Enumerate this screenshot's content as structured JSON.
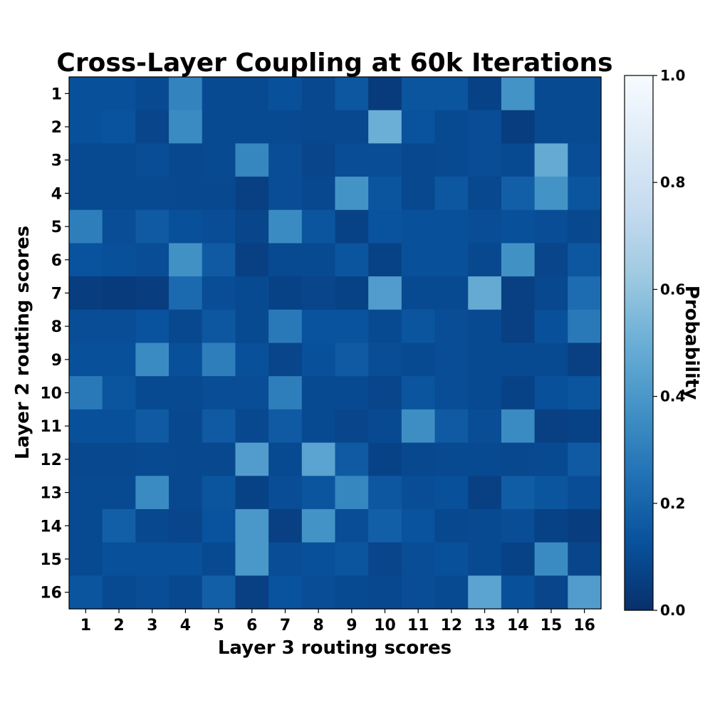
{
  "chart_data": {
    "type": "heatmap",
    "title": "Cross-Layer Coupling at 60k Iterations",
    "xlabel": "Layer 3 routing scores",
    "ylabel": "Layer 2 routing scores",
    "x_categories": [
      "1",
      "2",
      "3",
      "4",
      "5",
      "6",
      "7",
      "8",
      "9",
      "10",
      "11",
      "12",
      "13",
      "14",
      "15",
      "16"
    ],
    "y_categories": [
      "1",
      "2",
      "3",
      "4",
      "5",
      "6",
      "7",
      "8",
      "9",
      "10",
      "11",
      "12",
      "13",
      "14",
      "15",
      "16"
    ],
    "values": [
      [
        0.12,
        0.12,
        0.1,
        0.32,
        0.1,
        0.1,
        0.12,
        0.09,
        0.15,
        0.04,
        0.14,
        0.14,
        0.07,
        0.38,
        0.1,
        0.1
      ],
      [
        0.12,
        0.13,
        0.08,
        0.35,
        0.1,
        0.1,
        0.1,
        0.09,
        0.09,
        0.5,
        0.13,
        0.1,
        0.11,
        0.05,
        0.1,
        0.1
      ],
      [
        0.1,
        0.1,
        0.11,
        0.09,
        0.1,
        0.33,
        0.11,
        0.08,
        0.11,
        0.11,
        0.09,
        0.1,
        0.11,
        0.1,
        0.48,
        0.11
      ],
      [
        0.1,
        0.1,
        0.1,
        0.09,
        0.09,
        0.06,
        0.11,
        0.09,
        0.38,
        0.14,
        0.09,
        0.15,
        0.09,
        0.18,
        0.38,
        0.14
      ],
      [
        0.3,
        0.11,
        0.16,
        0.12,
        0.11,
        0.08,
        0.35,
        0.14,
        0.07,
        0.13,
        0.12,
        0.12,
        0.11,
        0.12,
        0.11,
        0.09
      ],
      [
        0.13,
        0.12,
        0.11,
        0.37,
        0.16,
        0.06,
        0.1,
        0.1,
        0.14,
        0.07,
        0.12,
        0.12,
        0.09,
        0.37,
        0.08,
        0.15
      ],
      [
        0.05,
        0.04,
        0.05,
        0.22,
        0.11,
        0.1,
        0.07,
        0.08,
        0.07,
        0.42,
        0.1,
        0.1,
        0.48,
        0.06,
        0.09,
        0.23
      ],
      [
        0.11,
        0.11,
        0.13,
        0.09,
        0.15,
        0.1,
        0.28,
        0.13,
        0.13,
        0.1,
        0.14,
        0.11,
        0.1,
        0.06,
        0.12,
        0.28
      ],
      [
        0.12,
        0.12,
        0.35,
        0.12,
        0.3,
        0.12,
        0.08,
        0.12,
        0.16,
        0.11,
        0.1,
        0.11,
        0.1,
        0.1,
        0.1,
        0.06
      ],
      [
        0.28,
        0.14,
        0.1,
        0.1,
        0.11,
        0.11,
        0.3,
        0.1,
        0.1,
        0.08,
        0.14,
        0.11,
        0.1,
        0.07,
        0.12,
        0.14
      ],
      [
        0.12,
        0.12,
        0.16,
        0.09,
        0.16,
        0.09,
        0.16,
        0.1,
        0.08,
        0.1,
        0.36,
        0.16,
        0.11,
        0.35,
        0.06,
        0.07
      ],
      [
        0.09,
        0.09,
        0.1,
        0.09,
        0.09,
        0.42,
        0.1,
        0.45,
        0.16,
        0.07,
        0.09,
        0.1,
        0.1,
        0.09,
        0.1,
        0.16
      ],
      [
        0.1,
        0.1,
        0.35,
        0.09,
        0.14,
        0.07,
        0.11,
        0.14,
        0.33,
        0.15,
        0.11,
        0.12,
        0.06,
        0.17,
        0.14,
        0.11
      ],
      [
        0.1,
        0.18,
        0.09,
        0.08,
        0.13,
        0.4,
        0.06,
        0.38,
        0.11,
        0.18,
        0.13,
        0.09,
        0.1,
        0.11,
        0.07,
        0.05
      ],
      [
        0.1,
        0.12,
        0.12,
        0.12,
        0.1,
        0.4,
        0.11,
        0.12,
        0.14,
        0.08,
        0.11,
        0.12,
        0.1,
        0.07,
        0.35,
        0.08
      ],
      [
        0.14,
        0.1,
        0.11,
        0.09,
        0.18,
        0.06,
        0.13,
        0.11,
        0.1,
        0.09,
        0.11,
        0.1,
        0.45,
        0.12,
        0.08,
        0.42
      ]
    ],
    "colorbar": {
      "label": "Probability",
      "vmin": 0.0,
      "vmax": 1.0,
      "ticks": [
        "0.0",
        "0.2",
        "0.4",
        "0.6",
        "0.8",
        "1.0"
      ],
      "tick_values": [
        0.0,
        0.2,
        0.4,
        0.6,
        0.8,
        1.0
      ],
      "colormap": "Blues_r"
    }
  }
}
